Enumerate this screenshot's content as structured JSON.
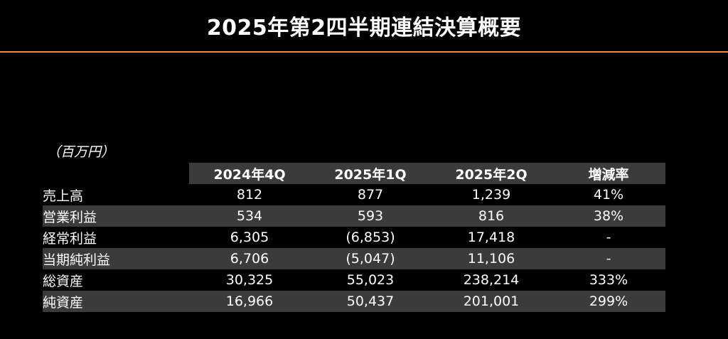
{
  "title": "2025年第2四半期連結決算概要",
  "unit": "（百万円）",
  "colors": {
    "background": "#000000",
    "accent_rule": "#f28a3a",
    "shade": "#3b3b3b",
    "text": "#ffffff"
  },
  "table": {
    "headers": [
      "2024年4Q",
      "2025年1Q",
      "2025年2Q",
      "増減率"
    ],
    "rows": [
      {
        "label": "売上高",
        "values": [
          "812",
          "877",
          "1,239",
          "41%"
        ]
      },
      {
        "label": "営業利益",
        "values": [
          "534",
          "593",
          "816",
          "38%"
        ]
      },
      {
        "label": "経常利益",
        "values": [
          "6,305",
          "(6,853)",
          "17,418",
          "-"
        ]
      },
      {
        "label": "当期純利益",
        "values": [
          "6,706",
          "(5,047)",
          "11,106",
          "-"
        ]
      },
      {
        "label": "総資産",
        "values": [
          "30,325",
          "55,023",
          "238,214",
          "333%"
        ]
      },
      {
        "label": "純資産",
        "values": [
          "16,966",
          "50,437",
          "201,001",
          "299%"
        ]
      }
    ]
  }
}
